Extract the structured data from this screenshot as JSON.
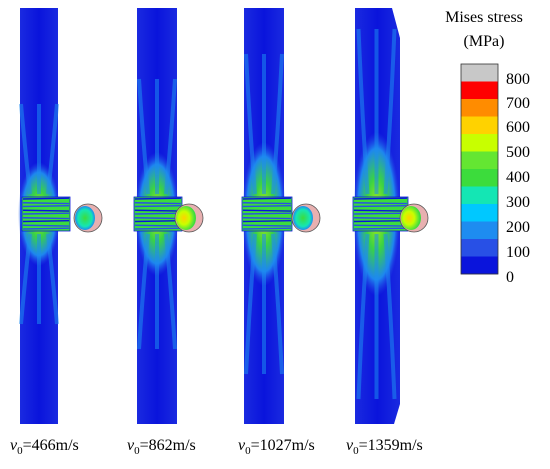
{
  "legend": {
    "title_line1": "Mises stress",
    "title_line2": "(MPa)",
    "ticks": [
      "800",
      "700",
      "600",
      "500",
      "400",
      "300",
      "200",
      "100",
      "0"
    ],
    "bands_top_to_bottom": [
      "#c8c8c8",
      "#ff0000",
      "#ff8c00",
      "#ffd200",
      "#c8ff00",
      "#64e632",
      "#3cdc3c",
      "#14e6b4",
      "#00c8ff",
      "#1e8cf0",
      "#2850e6",
      "#0a14dc"
    ]
  },
  "panels": [
    {
      "label_v": "v",
      "label_sub": "0",
      "label_rest": "=466m/s",
      "velocity_m_s": 466
    },
    {
      "label_v": "v",
      "label_sub": "0",
      "label_rest": "=862m/s",
      "velocity_m_s": 862
    },
    {
      "label_v": "v",
      "label_sub": "0",
      "label_rest": "=1027m/s",
      "velocity_m_s": 1027
    },
    {
      "label_v": "v",
      "label_sub": "0",
      "label_rest": "=1359m/s",
      "velocity_m_s": 1359
    }
  ],
  "colors": {
    "low_stress": "#0a14dc",
    "mid_stress": "#3cdc3c",
    "high_stress": "#ffd200"
  }
}
